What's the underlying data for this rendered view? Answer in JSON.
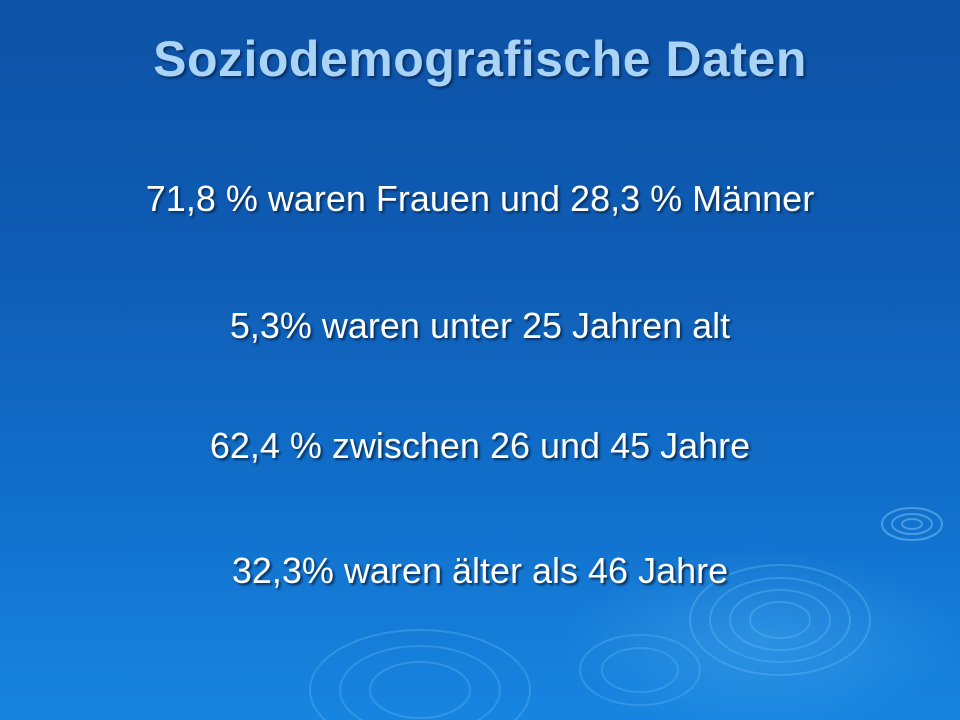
{
  "slide": {
    "title": "Soziodemografische Daten",
    "lines": [
      "71,8 % waren Frauen und 28,3 % Männer",
      "5,3% waren unter 25 Jahren alt",
      "62,4 % zwischen 26 und 45 Jahre",
      "32,3% waren älter als 46 Jahre"
    ]
  },
  "colors": {
    "background_top": "#0d52a6",
    "background_bottom": "#1785e0",
    "title": "#a9d4f5",
    "body_text": "#ffffff"
  }
}
